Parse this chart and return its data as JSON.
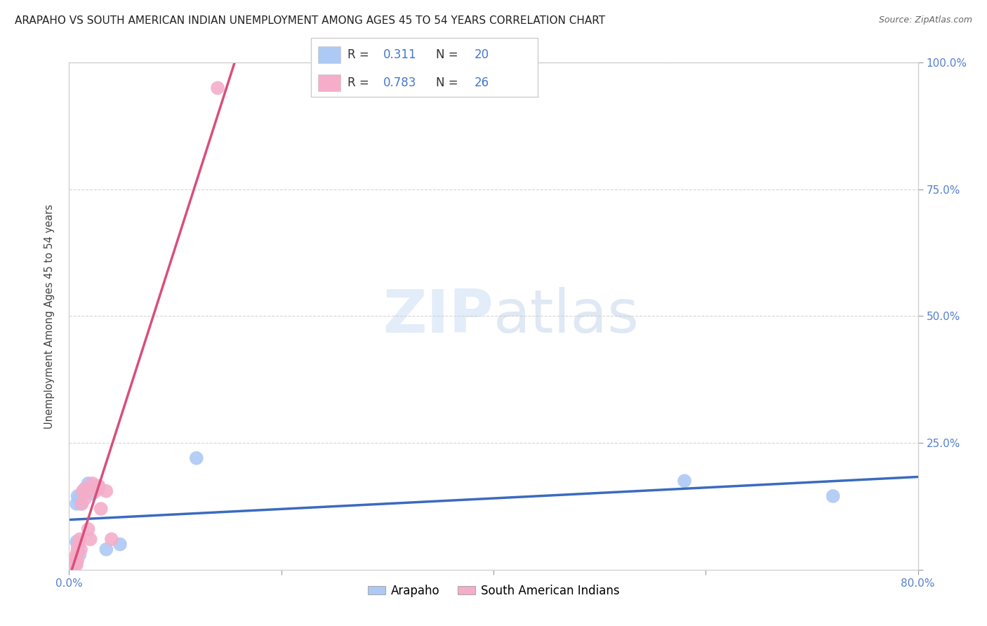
{
  "title": "ARAPAHO VS SOUTH AMERICAN INDIAN UNEMPLOYMENT AMONG AGES 45 TO 54 YEARS CORRELATION CHART",
  "source": "Source: ZipAtlas.com",
  "ylabel": "Unemployment Among Ages 45 to 54 years",
  "xlim": [
    0.0,
    0.8
  ],
  "ylim": [
    0.0,
    1.0
  ],
  "background_color": "#ffffff",
  "grid_color": "#cccccc",
  "watermark_zip": "ZIP",
  "watermark_atlas": "atlas",
  "arapaho_color": "#adc9f5",
  "south_american_color": "#f5adc9",
  "arapaho_line_color": "#3a6bbf",
  "south_american_line_color": "#d94f7a",
  "tick_color": "#5580cc",
  "arapaho_R": 0.311,
  "arapaho_N": 20,
  "south_american_R": 0.783,
  "south_american_N": 26,
  "arapaho_x": [
    0.004,
    0.005,
    0.006,
    0.007,
    0.007,
    0.008,
    0.008,
    0.009,
    0.01,
    0.011,
    0.012,
    0.015,
    0.018,
    0.022,
    0.028,
    0.035,
    0.048,
    0.12,
    0.58,
    0.72
  ],
  "arapaho_y": [
    0.015,
    0.02,
    0.01,
    0.055,
    0.13,
    0.05,
    0.145,
    0.14,
    0.03,
    0.13,
    0.15,
    0.16,
    0.17,
    0.15,
    0.16,
    0.04,
    0.05,
    0.22,
    0.175,
    0.145
  ],
  "south_american_x": [
    0.002,
    0.003,
    0.004,
    0.005,
    0.005,
    0.006,
    0.007,
    0.007,
    0.008,
    0.008,
    0.009,
    0.01,
    0.011,
    0.012,
    0.013,
    0.015,
    0.016,
    0.018,
    0.02,
    0.022,
    0.025,
    0.028,
    0.03,
    0.035,
    0.04,
    0.14
  ],
  "south_american_y": [
    0.005,
    0.01,
    0.005,
    0.01,
    0.015,
    0.02,
    0.01,
    0.03,
    0.04,
    0.02,
    0.05,
    0.06,
    0.04,
    0.13,
    0.155,
    0.14,
    0.16,
    0.08,
    0.06,
    0.17,
    0.155,
    0.165,
    0.12,
    0.155,
    0.06,
    0.95
  ],
  "title_fontsize": 11,
  "axis_label_fontsize": 10.5,
  "tick_fontsize": 11,
  "legend_fontsize": 12
}
